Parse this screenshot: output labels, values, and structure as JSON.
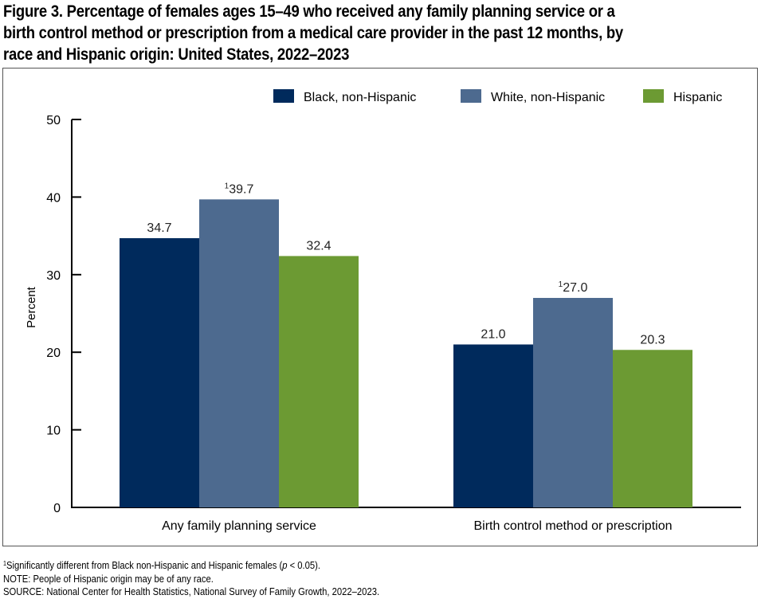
{
  "figure": {
    "title": "Figure 3. Percentage of females ages 15–49 who received any family planning service or a birth control method or prescription from a medical care provider in the past 12 months, by race and Hispanic origin: United States, 2022–2023",
    "title_lines": [
      "Figure 3. Percentage of females ages 15–49 who received any family planning service or a",
      "birth control method or prescription from a medical care provider in the past 12 months, by",
      "race and Hispanic origin: United States, 2022–2023"
    ]
  },
  "chart_data": {
    "type": "bar",
    "title": "Percentage of females ages 15–49 who received any family planning service or a birth control method or prescription from a medical care provider in the past 12 months, by race and Hispanic origin: United States, 2022–2023",
    "xlabel": "",
    "ylabel": "Percent",
    "ylim": [
      0,
      50
    ],
    "yticks": [
      0,
      10,
      20,
      30,
      40,
      50
    ],
    "grid": false,
    "legend_position": "top-right",
    "categories": [
      "Any family planning service",
      "Birth control method or prescription"
    ],
    "series": [
      {
        "name": "Black, non-Hispanic",
        "color": "#002a5c",
        "values": [
          34.7,
          21.0
        ],
        "labels": [
          "34.7",
          "21.0"
        ],
        "superscripts": [
          "",
          ""
        ]
      },
      {
        "name": "White, non-Hispanic",
        "color": "#4d6a8f",
        "values": [
          39.7,
          27.0
        ],
        "labels": [
          "39.7",
          "27.0"
        ],
        "superscripts": [
          "1",
          "1"
        ]
      },
      {
        "name": "Hispanic",
        "color": "#6c9a33",
        "values": [
          32.4,
          20.3
        ],
        "labels": [
          "32.4",
          "20.3"
        ],
        "superscripts": [
          "",
          ""
        ]
      }
    ]
  },
  "footnotes": {
    "significance_marker": "1",
    "significance_text_before": "Significantly different from Black non-Hispanic and Hispanic females (",
    "significance_p": "p",
    "significance_text_after": " < 0.05).",
    "note": "NOTE: People of Hispanic origin may be of any race.",
    "source": "SOURCE: National Center for Health Statistics, National Survey of Family Growth, 2022–2023."
  }
}
